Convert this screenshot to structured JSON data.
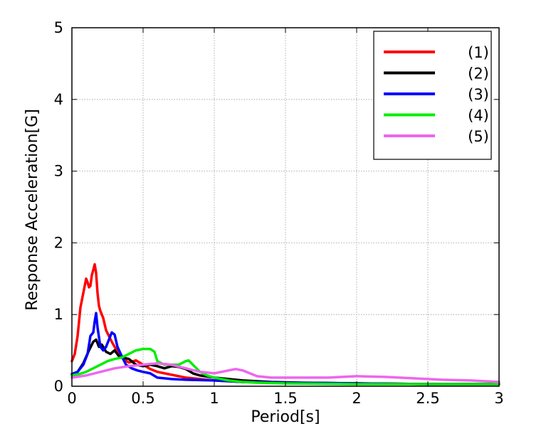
{
  "chart_data": {
    "type": "line",
    "title": "",
    "xlabel": "Period[s]",
    "ylabel": "Response Acceleration[G]",
    "xlim": [
      0,
      3
    ],
    "ylim": [
      0,
      5
    ],
    "xticks": [
      0,
      0.5,
      1,
      1.5,
      2,
      2.5,
      3
    ],
    "xtick_labels": [
      "0",
      "0.5",
      "1",
      "1.5",
      "2",
      "2.5",
      "3"
    ],
    "yticks": [
      0,
      1,
      2,
      3,
      4,
      5
    ],
    "ytick_labels": [
      "0",
      "1",
      "2",
      "3",
      "4",
      "5"
    ],
    "grid": true,
    "legend_position": "top-right",
    "series": [
      {
        "name": "(1)",
        "color": "#ff0000",
        "x": [
          0,
          0.02,
          0.04,
          0.06,
          0.08,
          0.1,
          0.11,
          0.12,
          0.13,
          0.14,
          0.15,
          0.16,
          0.17,
          0.18,
          0.19,
          0.2,
          0.22,
          0.24,
          0.26,
          0.28,
          0.3,
          0.33,
          0.36,
          0.4,
          0.45,
          0.5,
          0.55,
          0.6,
          0.7,
          0.8,
          0.9,
          1.0,
          1.2,
          1.5,
          2.0,
          2.5,
          3.0
        ],
        "y": [
          0.35,
          0.45,
          0.7,
          1.1,
          1.3,
          1.5,
          1.45,
          1.38,
          1.4,
          1.55,
          1.62,
          1.7,
          1.58,
          1.3,
          1.12,
          1.05,
          0.95,
          0.78,
          0.7,
          0.62,
          0.55,
          0.45,
          0.38,
          0.33,
          0.36,
          0.3,
          0.24,
          0.2,
          0.16,
          0.12,
          0.1,
          0.08,
          0.06,
          0.05,
          0.04,
          0.03,
          0.03
        ]
      },
      {
        "name": "(2)",
        "color": "#000000",
        "x": [
          0,
          0.04,
          0.08,
          0.12,
          0.15,
          0.17,
          0.19,
          0.21,
          0.24,
          0.27,
          0.3,
          0.33,
          0.36,
          0.4,
          0.45,
          0.5,
          0.55,
          0.6,
          0.65,
          0.7,
          0.75,
          0.8,
          0.85,
          0.9,
          1.0,
          1.1,
          1.2,
          1.4,
          1.6,
          2.0,
          2.5,
          3.0
        ],
        "y": [
          0.17,
          0.2,
          0.32,
          0.5,
          0.62,
          0.65,
          0.55,
          0.58,
          0.48,
          0.45,
          0.5,
          0.42,
          0.4,
          0.38,
          0.3,
          0.28,
          0.3,
          0.28,
          0.25,
          0.28,
          0.27,
          0.24,
          0.18,
          0.15,
          0.12,
          0.1,
          0.08,
          0.06,
          0.05,
          0.04,
          0.03,
          0.03
        ]
      },
      {
        "name": "(3)",
        "color": "#0000ff",
        "x": [
          0,
          0.04,
          0.08,
          0.11,
          0.13,
          0.15,
          0.16,
          0.17,
          0.18,
          0.2,
          0.22,
          0.24,
          0.26,
          0.28,
          0.3,
          0.32,
          0.35,
          0.38,
          0.42,
          0.46,
          0.5,
          0.55,
          0.6,
          0.7,
          0.8,
          1.0,
          1.2,
          1.5,
          2.0,
          2.5,
          3.0
        ],
        "y": [
          0.17,
          0.2,
          0.3,
          0.45,
          0.7,
          0.75,
          0.9,
          1.02,
          0.82,
          0.55,
          0.5,
          0.55,
          0.65,
          0.75,
          0.72,
          0.55,
          0.42,
          0.3,
          0.25,
          0.22,
          0.2,
          0.18,
          0.12,
          0.1,
          0.09,
          0.08,
          0.06,
          0.05,
          0.04,
          0.03,
          0.03
        ]
      },
      {
        "name": "(4)",
        "color": "#00ee00",
        "x": [
          0,
          0.05,
          0.1,
          0.15,
          0.2,
          0.25,
          0.3,
          0.35,
          0.4,
          0.45,
          0.5,
          0.55,
          0.58,
          0.6,
          0.65,
          0.7,
          0.75,
          0.8,
          0.82,
          0.85,
          0.9,
          0.95,
          1.0,
          1.05,
          1.1,
          1.2,
          1.3,
          1.5,
          2.0,
          2.5,
          3.0
        ],
        "y": [
          0.15,
          0.17,
          0.2,
          0.25,
          0.3,
          0.35,
          0.38,
          0.4,
          0.45,
          0.5,
          0.52,
          0.52,
          0.48,
          0.35,
          0.3,
          0.3,
          0.3,
          0.35,
          0.36,
          0.3,
          0.2,
          0.15,
          0.12,
          0.1,
          0.08,
          0.06,
          0.05,
          0.04,
          0.03,
          0.03,
          0.03
        ]
      },
      {
        "name": "(5)",
        "color": "#ee66ee",
        "x": [
          0,
          0.1,
          0.2,
          0.3,
          0.4,
          0.5,
          0.6,
          0.7,
          0.8,
          0.9,
          1.0,
          1.05,
          1.1,
          1.15,
          1.2,
          1.3,
          1.4,
          1.6,
          1.8,
          2.0,
          2.2,
          2.4,
          2.6,
          2.8,
          3.0
        ],
        "y": [
          0.12,
          0.15,
          0.2,
          0.25,
          0.28,
          0.3,
          0.32,
          0.3,
          0.25,
          0.2,
          0.18,
          0.2,
          0.22,
          0.24,
          0.22,
          0.14,
          0.12,
          0.12,
          0.12,
          0.14,
          0.13,
          0.11,
          0.09,
          0.08,
          0.06
        ]
      }
    ]
  }
}
